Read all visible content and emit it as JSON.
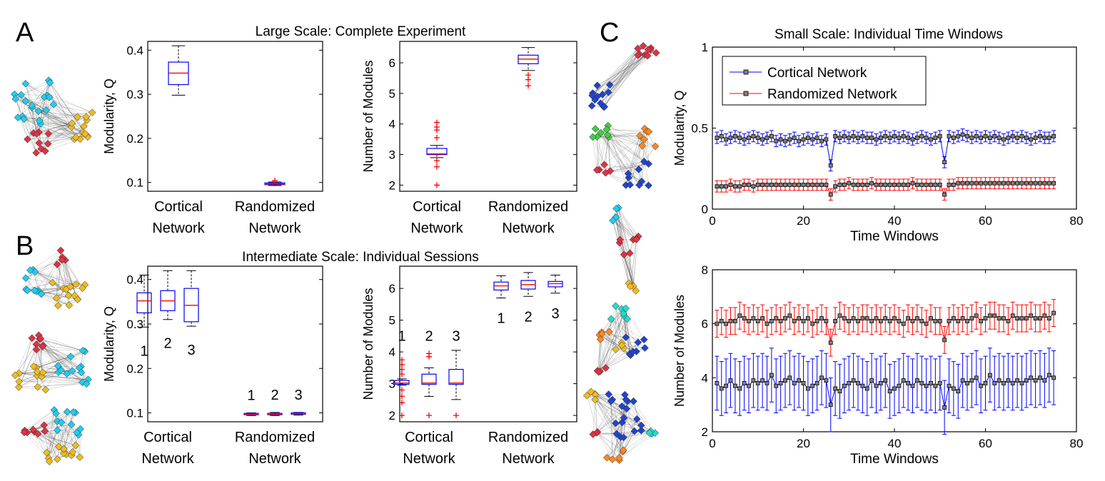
{
  "panel_labels": {
    "A": "A",
    "B": "B",
    "C": "C"
  },
  "titles": {
    "large": "Large Scale: Complete Experiment",
    "intermediate": "Intermediate Scale: Individual Sessions",
    "small": "Small Scale:  Individual Time Windows"
  },
  "colors": {
    "cortical": "#0000ff",
    "randomized": "#ff0000",
    "median": "#ff0000",
    "outlier": "#ff0000",
    "marker_fill": "#808080",
    "node_cyan": "#22ccee",
    "node_yellow": "#eebb22",
    "node_red": "#dd3344",
    "node_blue": "#2244cc",
    "node_green": "#44cc44",
    "node_orange": "#ff8822",
    "node_teal": "#22ddcc"
  },
  "chart_data": [
    {
      "id": "A-modularity",
      "type": "box",
      "ylabel": "Modularity, Q",
      "ylim": [
        0.08,
        0.42
      ],
      "yticks": [
        0.1,
        0.2,
        0.3,
        0.4
      ],
      "ytick_labels": [
        "0.1",
        "0.2",
        "0.3",
        "0.4"
      ],
      "categories": [
        [
          "Cortical",
          "Network"
        ],
        [
          "Randomized",
          "Network"
        ]
      ],
      "boxes": [
        {
          "group": 0,
          "min": 0.298,
          "q1": 0.322,
          "median": 0.348,
          "q3": 0.373,
          "max": 0.41,
          "outliers": []
        },
        {
          "group": 1,
          "min": 0.093,
          "q1": 0.095,
          "median": 0.097,
          "q3": 0.099,
          "max": 0.101,
          "outliers": [
            0.104
          ]
        }
      ]
    },
    {
      "id": "A-modules",
      "type": "box",
      "ylabel": "Number of Modules",
      "ylim": [
        1.8,
        6.7
      ],
      "yticks": [
        2,
        3,
        4,
        5,
        6
      ],
      "ytick_labels": [
        "2",
        "3",
        "4",
        "5",
        "6"
      ],
      "categories": [
        [
          "Cortical",
          "Network"
        ],
        [
          "Randomized",
          "Network"
        ]
      ],
      "boxes": [
        {
          "group": 0,
          "min": 2.9,
          "q1": 3.0,
          "median": 3.02,
          "q3": 3.2,
          "max": 3.3,
          "outliers": [
            2.0,
            2.6,
            2.8,
            3.55,
            3.8,
            3.9,
            4.05
          ]
        },
        {
          "group": 1,
          "min": 5.75,
          "q1": 5.97,
          "median": 6.12,
          "q3": 6.25,
          "max": 6.5,
          "outliers": [
            5.25,
            5.45,
            5.6
          ]
        }
      ]
    },
    {
      "id": "B-modularity",
      "type": "box",
      "ylabel": "Modularity, Q",
      "ylim": [
        0.08,
        0.43
      ],
      "yticks": [
        0.1,
        0.2,
        0.3,
        0.4
      ],
      "ytick_labels": [
        "0.1",
        "0.2",
        "0.3",
        "0.4"
      ],
      "categories": [
        [
          "Cortical",
          "Network"
        ],
        [
          "Randomized",
          "Network"
        ]
      ],
      "box_labels": [
        "1",
        "2",
        "3",
        "1",
        "2",
        "3"
      ],
      "boxes": [
        {
          "group": 0,
          "sub": 0,
          "min": 0.293,
          "q1": 0.325,
          "median": 0.352,
          "q3": 0.37,
          "max": 0.41,
          "outliers": []
        },
        {
          "group": 0,
          "sub": 1,
          "min": 0.31,
          "q1": 0.33,
          "median": 0.352,
          "q3": 0.375,
          "max": 0.42,
          "outliers": []
        },
        {
          "group": 0,
          "sub": 2,
          "min": 0.295,
          "q1": 0.305,
          "median": 0.342,
          "q3": 0.38,
          "max": 0.42,
          "outliers": []
        },
        {
          "group": 1,
          "sub": 0,
          "min": 0.094,
          "q1": 0.096,
          "median": 0.097,
          "q3": 0.099,
          "max": 0.1,
          "outliers": []
        },
        {
          "group": 1,
          "sub": 1,
          "min": 0.094,
          "q1": 0.096,
          "median": 0.097,
          "q3": 0.099,
          "max": 0.101,
          "outliers": []
        },
        {
          "group": 1,
          "sub": 2,
          "min": 0.095,
          "q1": 0.097,
          "median": 0.098,
          "q3": 0.1,
          "max": 0.101,
          "outliers": []
        }
      ]
    },
    {
      "id": "B-modules",
      "type": "box",
      "ylabel": "Number of Modules",
      "ylim": [
        1.8,
        6.7
      ],
      "yticks": [
        2,
        3,
        4,
        5,
        6
      ],
      "ytick_labels": [
        "2",
        "3",
        "4",
        "5",
        "6"
      ],
      "categories": [
        [
          "Cortical",
          "Network"
        ],
        [
          "Randomized",
          "Network"
        ]
      ],
      "box_labels": [
        "1",
        "2",
        "3",
        "1",
        "2",
        "3"
      ],
      "boxes": [
        {
          "group": 0,
          "sub": 0,
          "min": 2.95,
          "q1": 2.98,
          "median": 3.02,
          "q3": 3.1,
          "max": 3.15,
          "outliers": [
            2.0,
            2.4,
            2.6,
            2.8,
            3.3,
            3.45,
            3.6,
            3.75
          ]
        },
        {
          "group": 0,
          "sub": 1,
          "min": 2.6,
          "q1": 2.98,
          "median": 3.02,
          "q3": 3.3,
          "max": 3.5,
          "outliers": [
            2.0,
            3.85,
            3.95
          ]
        },
        {
          "group": 0,
          "sub": 2,
          "min": 2.5,
          "q1": 2.98,
          "median": 3.02,
          "q3": 3.45,
          "max": 4.05,
          "outliers": [
            2.0
          ]
        },
        {
          "group": 1,
          "sub": 0,
          "min": 5.7,
          "q1": 5.95,
          "median": 6.08,
          "q3": 6.2,
          "max": 6.4,
          "outliers": []
        },
        {
          "group": 1,
          "sub": 1,
          "min": 5.75,
          "q1": 5.98,
          "median": 6.12,
          "q3": 6.25,
          "max": 6.5,
          "outliers": []
        },
        {
          "group": 1,
          "sub": 2,
          "min": 5.85,
          "q1": 6.05,
          "median": 6.15,
          "q3": 6.22,
          "max": 6.42,
          "outliers": []
        }
      ]
    },
    {
      "id": "C-modularity",
      "type": "line",
      "xlabel": "Time Windows",
      "ylabel": "Modularity, Q",
      "xlim": [
        0,
        80
      ],
      "ylim": [
        0,
        1
      ],
      "xticks": [
        0,
        20,
        40,
        60,
        80
      ],
      "yticks": [
        0,
        0.5,
        1
      ],
      "ytick_labels": [
        "0",
        "0.5",
        "1"
      ],
      "legend": {
        "position": "top-left",
        "entries": [
          "Cortical Network",
          "Randomized Network"
        ]
      },
      "series": [
        {
          "name": "Cortical Network",
          "color": "#0000ff",
          "x_start": 1,
          "x_end": 75,
          "values": [
            0.44,
            0.45,
            0.43,
            0.44,
            0.45,
            0.44,
            0.43,
            0.44,
            0.45,
            0.44,
            0.43,
            0.44,
            0.45,
            0.42,
            0.43,
            0.42,
            0.43,
            0.44,
            0.42,
            0.43,
            0.44,
            0.43,
            0.44,
            0.42,
            0.43,
            0.27,
            0.45,
            0.44,
            0.45,
            0.44,
            0.45,
            0.44,
            0.45,
            0.44,
            0.44,
            0.43,
            0.44,
            0.45,
            0.44,
            0.45,
            0.44,
            0.45,
            0.44,
            0.43,
            0.44,
            0.45,
            0.44,
            0.43,
            0.44,
            0.45,
            0.29,
            0.45,
            0.44,
            0.45,
            0.46,
            0.45,
            0.44,
            0.45,
            0.44,
            0.45,
            0.44,
            0.45,
            0.44,
            0.43,
            0.44,
            0.45,
            0.44,
            0.45,
            0.44,
            0.43,
            0.44,
            0.45,
            0.44,
            0.44,
            0.45
          ],
          "error": 0.035
        },
        {
          "name": "Randomized Network",
          "color": "#ff0000",
          "x_start": 1,
          "x_end": 75,
          "values": [
            0.14,
            0.14,
            0.14,
            0.15,
            0.14,
            0.14,
            0.15,
            0.15,
            0.14,
            0.15,
            0.15,
            0.15,
            0.15,
            0.15,
            0.15,
            0.15,
            0.15,
            0.15,
            0.15,
            0.15,
            0.15,
            0.15,
            0.15,
            0.15,
            0.15,
            0.09,
            0.14,
            0.15,
            0.15,
            0.16,
            0.15,
            0.15,
            0.15,
            0.15,
            0.16,
            0.15,
            0.15,
            0.15,
            0.15,
            0.15,
            0.15,
            0.15,
            0.15,
            0.16,
            0.15,
            0.15,
            0.15,
            0.15,
            0.15,
            0.15,
            0.09,
            0.15,
            0.15,
            0.16,
            0.16,
            0.16,
            0.16,
            0.16,
            0.16,
            0.16,
            0.16,
            0.16,
            0.16,
            0.16,
            0.16,
            0.16,
            0.16,
            0.16,
            0.16,
            0.16,
            0.16,
            0.16,
            0.16,
            0.16,
            0.16
          ],
          "error": 0.035
        }
      ]
    },
    {
      "id": "C-modules",
      "type": "line",
      "xlabel": "Time Windows",
      "ylabel": "Number of Modules",
      "xlim": [
        0,
        80
      ],
      "ylim": [
        2,
        8
      ],
      "xticks": [
        0,
        20,
        40,
        60,
        80
      ],
      "yticks": [
        2,
        4,
        6,
        8
      ],
      "ytick_labels": [
        "2",
        "4",
        "6",
        "8"
      ],
      "series": [
        {
          "name": "Cortical Network",
          "color": "#0000ff",
          "x_start": 1,
          "x_end": 75,
          "values": [
            3.8,
            3.6,
            3.7,
            3.9,
            3.7,
            3.6,
            3.8,
            3.7,
            3.9,
            3.8,
            3.9,
            3.8,
            4.1,
            3.7,
            3.8,
            3.9,
            4.0,
            3.8,
            3.9,
            3.8,
            3.6,
            3.7,
            3.8,
            4.0,
            3.9,
            3.0,
            3.6,
            3.5,
            3.7,
            3.8,
            3.9,
            3.8,
            3.7,
            3.6,
            3.9,
            3.7,
            3.8,
            3.9,
            3.5,
            3.6,
            3.7,
            3.9,
            3.8,
            3.7,
            3.9,
            3.8,
            3.7,
            3.8,
            3.7,
            3.8,
            2.9,
            3.7,
            3.6,
            3.5,
            3.9,
            3.8,
            3.9,
            4.0,
            3.7,
            3.8,
            4.1,
            3.8,
            3.9,
            3.8,
            3.9,
            3.8,
            3.9,
            3.8,
            3.9,
            4.0,
            3.9,
            4.0,
            3.9,
            4.1,
            4.0
          ],
          "error": 1.0
        },
        {
          "name": "Randomized Network",
          "color": "#ff0000",
          "x_start": 1,
          "x_end": 75,
          "values": [
            6.0,
            6.1,
            6.0,
            6.1,
            6.1,
            6.3,
            6.2,
            6.1,
            6.2,
            6.1,
            6.2,
            6.0,
            6.1,
            6.2,
            6.1,
            6.2,
            6.3,
            6.1,
            6.2,
            6.1,
            6.2,
            6.0,
            6.1,
            6.2,
            6.1,
            5.3,
            6.1,
            6.3,
            6.2,
            6.1,
            6.2,
            6.1,
            6.2,
            6.2,
            6.1,
            6.2,
            6.1,
            6.2,
            6.1,
            6.2,
            6.1,
            6.0,
            6.2,
            6.1,
            6.2,
            6.1,
            6.0,
            6.2,
            6.1,
            6.1,
            5.4,
            6.1,
            6.2,
            6.1,
            6.2,
            6.1,
            6.2,
            6.3,
            6.1,
            6.2,
            6.3,
            6.3,
            6.2,
            6.2,
            6.1,
            6.3,
            6.2,
            6.2,
            6.2,
            6.3,
            6.2,
            6.2,
            6.3,
            6.2,
            6.4
          ],
          "error": 0.5
        }
      ]
    }
  ]
}
